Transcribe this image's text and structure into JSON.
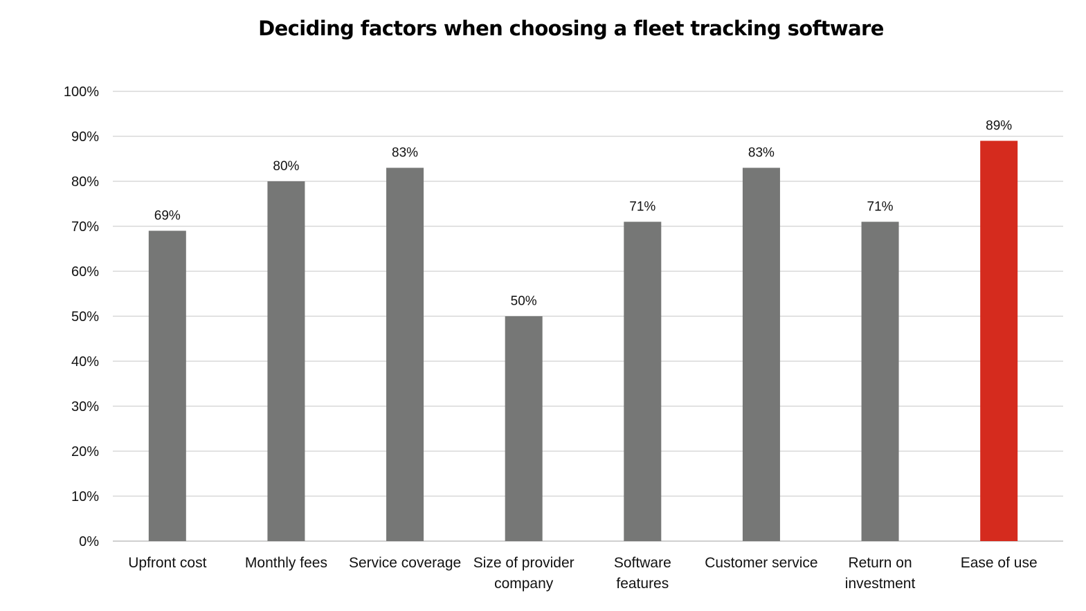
{
  "chart_data": {
    "type": "bar",
    "title": "Deciding factors when choosing a fleet tracking software",
    "xlabel": "",
    "ylabel": "",
    "categories": [
      "Upfront cost",
      "Monthly fees",
      "Service coverage",
      "Size of provider company",
      "Software features",
      "Customer service",
      "Return on investment",
      "Ease of use"
    ],
    "category_lines": [
      [
        "Upfront cost"
      ],
      [
        "Monthly fees"
      ],
      [
        "Service coverage"
      ],
      [
        "Size of provider",
        "company"
      ],
      [
        "Software",
        "features"
      ],
      [
        "Customer service"
      ],
      [
        "Return on",
        "investment"
      ],
      [
        "Ease of use"
      ]
    ],
    "values": [
      69,
      80,
      83,
      50,
      71,
      83,
      71,
      89
    ],
    "value_labels": [
      "69%",
      "80%",
      "83%",
      "50%",
      "71%",
      "83%",
      "71%",
      "89%"
    ],
    "ylim": [
      0,
      100
    ],
    "y_ticks": [
      0,
      10,
      20,
      30,
      40,
      50,
      60,
      70,
      80,
      90,
      100
    ],
    "y_tick_labels": [
      "0%",
      "10%",
      "20%",
      "30%",
      "40%",
      "50%",
      "60%",
      "70%",
      "80%",
      "90%",
      "100%"
    ],
    "grid": true,
    "legend": "none",
    "colors": {
      "bar": "#767776",
      "highlight": "#d52b1e",
      "grid": "#d9d9d9"
    },
    "highlight_category": "Ease of use"
  }
}
